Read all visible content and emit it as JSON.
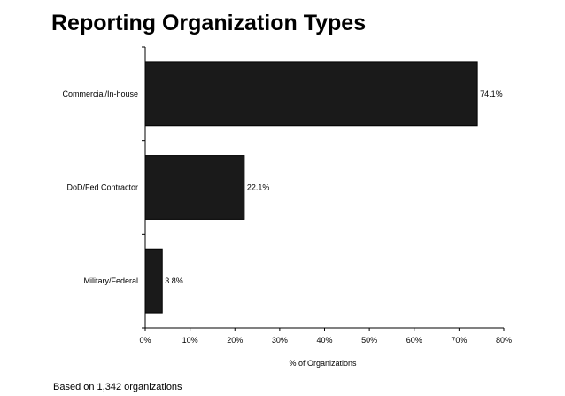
{
  "chart_data": {
    "type": "bar",
    "orientation": "horizontal",
    "title": "Reporting Organization Types",
    "categories": [
      "Commercial/In-house",
      "DoD/Fed Contractor",
      "Military/Federal"
    ],
    "values": [
      74.1,
      22.1,
      3.8
    ],
    "data_labels": [
      "74.1%",
      "22.1%",
      "3.8%"
    ],
    "xlabel": "% of Organizations",
    "ylabel": "",
    "xlim": [
      0,
      80
    ],
    "x_ticks": [
      0,
      10,
      20,
      30,
      40,
      50,
      60,
      70,
      80
    ],
    "x_tick_labels": [
      "0%",
      "10%",
      "20%",
      "30%",
      "40%",
      "50%",
      "60%",
      "70%",
      "80%"
    ],
    "grid": false,
    "legend": "none",
    "bar_color": "#1a1a1a"
  },
  "footnote": "Based on 1,342 organizations"
}
